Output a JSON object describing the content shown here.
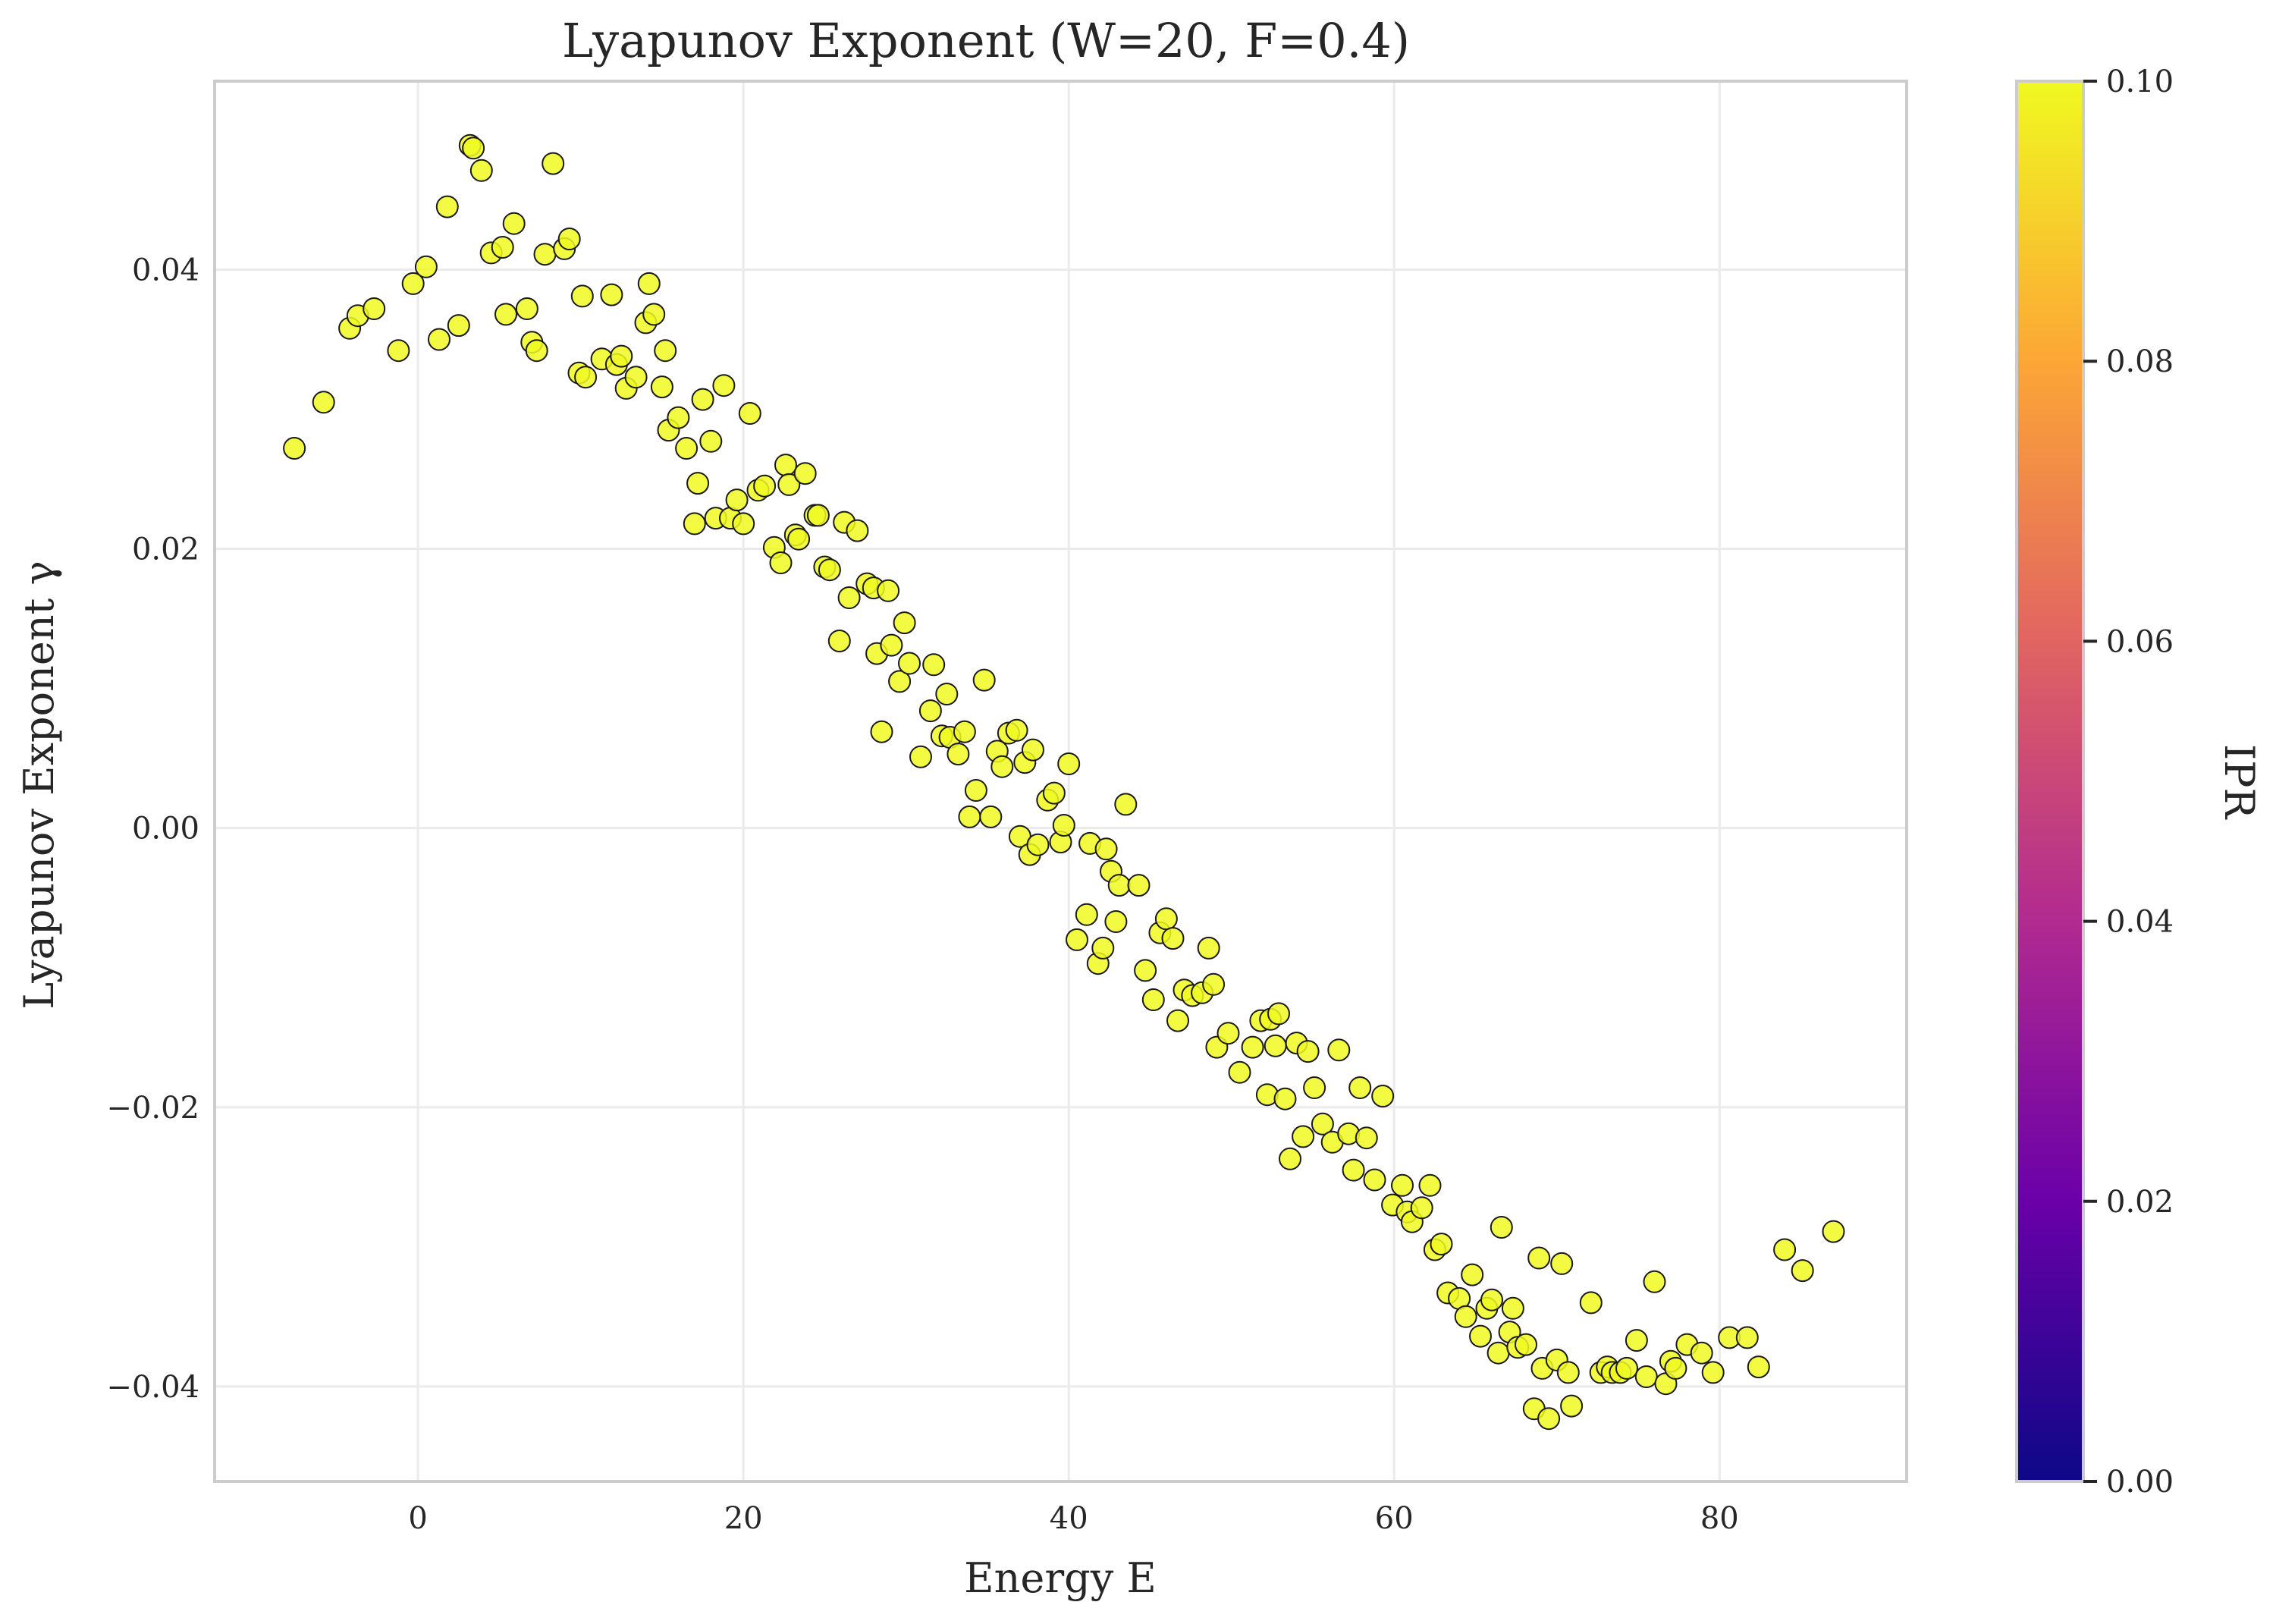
{
  "chart_data": {
    "type": "scatter",
    "title": "Lyapunov Exponent (W=20, F=0.4)",
    "xlabel": "Energy E",
    "ylabel": "Lyapunov Exponent γ",
    "xlim": [
      -12.5,
      91.5
    ],
    "ylim": [
      -0.0468,
      0.0535
    ],
    "xticks": [
      0,
      20,
      40,
      60,
      80
    ],
    "xtick_labels": [
      "0",
      "20",
      "40",
      "60",
      "80"
    ],
    "yticks": [
      -0.04,
      -0.02,
      0.0,
      0.02,
      0.04
    ],
    "ytick_labels": [
      "−0.04",
      "−0.02",
      "0.00",
      "0.02",
      "0.04"
    ],
    "grid": true,
    "marker_color": "#f0f921",
    "marker_edge_color": "#1a1a1a",
    "colorbar": {
      "label": "IPR",
      "min": 0.0,
      "max": 0.1,
      "ticks": [
        0.0,
        0.02,
        0.04,
        0.06,
        0.08,
        0.1
      ],
      "tick_labels": [
        "0.00",
        "0.02",
        "0.04",
        "0.06",
        "0.08",
        "0.10"
      ],
      "colormap": "plasma",
      "colors": [
        "#0d0887",
        "#6a00a8",
        "#b12a90",
        "#e16462",
        "#fca636",
        "#f0f921"
      ]
    },
    "points": [
      [
        -7.6,
        0.0272
      ],
      [
        -5.8,
        0.0305
      ],
      [
        -4.2,
        0.0358
      ],
      [
        -3.7,
        0.0367
      ],
      [
        -2.7,
        0.0372
      ],
      [
        -1.2,
        0.0342
      ],
      [
        -0.3,
        0.039
      ],
      [
        0.5,
        0.0402
      ],
      [
        1.3,
        0.035
      ],
      [
        1.8,
        0.0445
      ],
      [
        2.5,
        0.036
      ],
      [
        3.2,
        0.0489
      ],
      [
        3.4,
        0.0487
      ],
      [
        3.9,
        0.0471
      ],
      [
        4.5,
        0.0412
      ],
      [
        5.2,
        0.0416
      ],
      [
        5.4,
        0.0368
      ],
      [
        5.9,
        0.0433
      ],
      [
        6.7,
        0.0372
      ],
      [
        7.0,
        0.0348
      ],
      [
        7.3,
        0.0342
      ],
      [
        7.8,
        0.0411
      ],
      [
        8.3,
        0.0476
      ],
      [
        9.0,
        0.0415
      ],
      [
        9.3,
        0.0422
      ],
      [
        9.9,
        0.0326
      ],
      [
        10.1,
        0.0381
      ],
      [
        10.3,
        0.0323
      ],
      [
        11.3,
        0.0336
      ],
      [
        11.9,
        0.0382
      ],
      [
        12.2,
        0.0332
      ],
      [
        12.5,
        0.0338
      ],
      [
        12.8,
        0.0315
      ],
      [
        13.4,
        0.0323
      ],
      [
        14.0,
        0.0362
      ],
      [
        14.2,
        0.039
      ],
      [
        14.5,
        0.0368
      ],
      [
        15.0,
        0.0316
      ],
      [
        15.2,
        0.0342
      ],
      [
        15.4,
        0.0285
      ],
      [
        16.0,
        0.0294
      ],
      [
        16.5,
        0.0272
      ],
      [
        17.0,
        0.0218
      ],
      [
        17.2,
        0.0247
      ],
      [
        17.5,
        0.0307
      ],
      [
        18.0,
        0.0277
      ],
      [
        18.3,
        0.0222
      ],
      [
        18.8,
        0.0317
      ],
      [
        19.2,
        0.0222
      ],
      [
        19.6,
        0.0235
      ],
      [
        20.0,
        0.0218
      ],
      [
        20.4,
        0.0297
      ],
      [
        20.9,
        0.0242
      ],
      [
        21.3,
        0.0245
      ],
      [
        21.9,
        0.0201
      ],
      [
        22.3,
        0.019
      ],
      [
        22.6,
        0.026
      ],
      [
        22.8,
        0.0246
      ],
      [
        23.2,
        0.021
      ],
      [
        23.4,
        0.0207
      ],
      [
        23.8,
        0.0254
      ],
      [
        24.4,
        0.0224
      ],
      [
        24.6,
        0.0224
      ],
      [
        25.0,
        0.0187
      ],
      [
        25.3,
        0.0185
      ],
      [
        25.9,
        0.0134
      ],
      [
        26.2,
        0.0219
      ],
      [
        26.5,
        0.0165
      ],
      [
        27.0,
        0.0213
      ],
      [
        27.6,
        0.0175
      ],
      [
        28.0,
        0.0172
      ],
      [
        28.2,
        0.0125
      ],
      [
        28.5,
        0.0069
      ],
      [
        28.9,
        0.017
      ],
      [
        29.1,
        0.0131
      ],
      [
        29.6,
        0.0105
      ],
      [
        29.9,
        0.0147
      ],
      [
        30.2,
        0.0118
      ],
      [
        30.9,
        0.0051
      ],
      [
        31.5,
        0.0084
      ],
      [
        31.7,
        0.0117
      ],
      [
        32.2,
        0.0066
      ],
      [
        32.5,
        0.0096
      ],
      [
        32.7,
        0.0065
      ],
      [
        33.2,
        0.0053
      ],
      [
        33.6,
        0.0069
      ],
      [
        33.9,
        0.0008
      ],
      [
        34.3,
        0.0027
      ],
      [
        34.8,
        0.0106
      ],
      [
        35.2,
        0.0008
      ],
      [
        35.6,
        0.0055
      ],
      [
        35.9,
        0.0044
      ],
      [
        36.3,
        0.0068
      ],
      [
        36.8,
        0.007
      ],
      [
        37.0,
        -0.0006
      ],
      [
        37.3,
        0.0047
      ],
      [
        37.6,
        -0.0019
      ],
      [
        37.8,
        0.0056
      ],
      [
        38.1,
        -0.0012
      ],
      [
        38.7,
        0.002
      ],
      [
        39.1,
        0.0025
      ],
      [
        39.5,
        -0.001
      ],
      [
        39.7,
        0.0002
      ],
      [
        40.0,
        0.0046
      ],
      [
        40.5,
        -0.008
      ],
      [
        41.1,
        -0.0062
      ],
      [
        41.3,
        -0.0011
      ],
      [
        41.8,
        -0.0097
      ],
      [
        42.1,
        -0.0086
      ],
      [
        42.3,
        -0.0015
      ],
      [
        42.6,
        -0.0031
      ],
      [
        42.9,
        -0.0067
      ],
      [
        43.1,
        -0.0041
      ],
      [
        43.5,
        0.0017
      ],
      [
        44.3,
        -0.0041
      ],
      [
        44.7,
        -0.0102
      ],
      [
        45.2,
        -0.0123
      ],
      [
        45.6,
        -0.0075
      ],
      [
        46.0,
        -0.0065
      ],
      [
        46.4,
        -0.0079
      ],
      [
        46.7,
        -0.0138
      ],
      [
        47.1,
        -0.0116
      ],
      [
        47.6,
        -0.012
      ],
      [
        48.2,
        -0.0118
      ],
      [
        48.6,
        -0.0086
      ],
      [
        48.9,
        -0.0112
      ],
      [
        49.1,
        -0.0157
      ],
      [
        49.8,
        -0.0147
      ],
      [
        50.5,
        -0.0175
      ],
      [
        51.3,
        -0.0157
      ],
      [
        51.8,
        -0.0138
      ],
      [
        52.2,
        -0.0191
      ],
      [
        52.4,
        -0.0137
      ],
      [
        52.7,
        -0.0156
      ],
      [
        52.9,
        -0.0133
      ],
      [
        53.3,
        -0.0194
      ],
      [
        53.6,
        -0.0237
      ],
      [
        54.0,
        -0.0154
      ],
      [
        54.4,
        -0.0221
      ],
      [
        54.7,
        -0.016
      ],
      [
        55.1,
        -0.0186
      ],
      [
        55.6,
        -0.0212
      ],
      [
        56.2,
        -0.0225
      ],
      [
        56.6,
        -0.0159
      ],
      [
        57.2,
        -0.0219
      ],
      [
        57.5,
        -0.0245
      ],
      [
        57.9,
        -0.0186
      ],
      [
        58.3,
        -0.0222
      ],
      [
        58.8,
        -0.0252
      ],
      [
        59.3,
        -0.0192
      ],
      [
        59.9,
        -0.027
      ],
      [
        60.5,
        -0.0256
      ],
      [
        60.8,
        -0.0275
      ],
      [
        61.1,
        -0.0282
      ],
      [
        61.7,
        -0.0272
      ],
      [
        62.2,
        -0.0256
      ],
      [
        62.5,
        -0.0302
      ],
      [
        62.9,
        -0.0298
      ],
      [
        63.3,
        -0.0333
      ],
      [
        64.0,
        -0.0337
      ],
      [
        64.4,
        -0.035
      ],
      [
        64.8,
        -0.032
      ],
      [
        65.3,
        -0.0364
      ],
      [
        65.7,
        -0.0344
      ],
      [
        66.0,
        -0.0338
      ],
      [
        66.4,
        -0.0376
      ],
      [
        66.6,
        -0.0286
      ],
      [
        67.1,
        -0.0361
      ],
      [
        67.3,
        -0.0344
      ],
      [
        67.6,
        -0.0372
      ],
      [
        68.1,
        -0.037
      ],
      [
        68.6,
        -0.0416
      ],
      [
        68.9,
        -0.0308
      ],
      [
        69.1,
        -0.0387
      ],
      [
        69.5,
        -0.0423
      ],
      [
        70.0,
        -0.0381
      ],
      [
        70.3,
        -0.0312
      ],
      [
        70.7,
        -0.039
      ],
      [
        70.9,
        -0.0414
      ],
      [
        72.1,
        -0.034
      ],
      [
        72.7,
        -0.039
      ],
      [
        73.1,
        -0.0386
      ],
      [
        73.4,
        -0.039
      ],
      [
        73.9,
        -0.039
      ],
      [
        74.3,
        -0.0387
      ],
      [
        74.9,
        -0.0367
      ],
      [
        75.5,
        -0.0393
      ],
      [
        76.0,
        -0.0325
      ],
      [
        76.7,
        -0.0398
      ],
      [
        77.0,
        -0.0382
      ],
      [
        77.3,
        -0.0387
      ],
      [
        78.0,
        -0.037
      ],
      [
        78.9,
        -0.0376
      ],
      [
        79.6,
        -0.039
      ],
      [
        80.6,
        -0.0365
      ],
      [
        81.7,
        -0.0365
      ],
      [
        82.4,
        -0.0386
      ],
      [
        84.0,
        -0.0302
      ],
      [
        85.1,
        -0.0317
      ],
      [
        87.0,
        -0.0289
      ]
    ]
  }
}
